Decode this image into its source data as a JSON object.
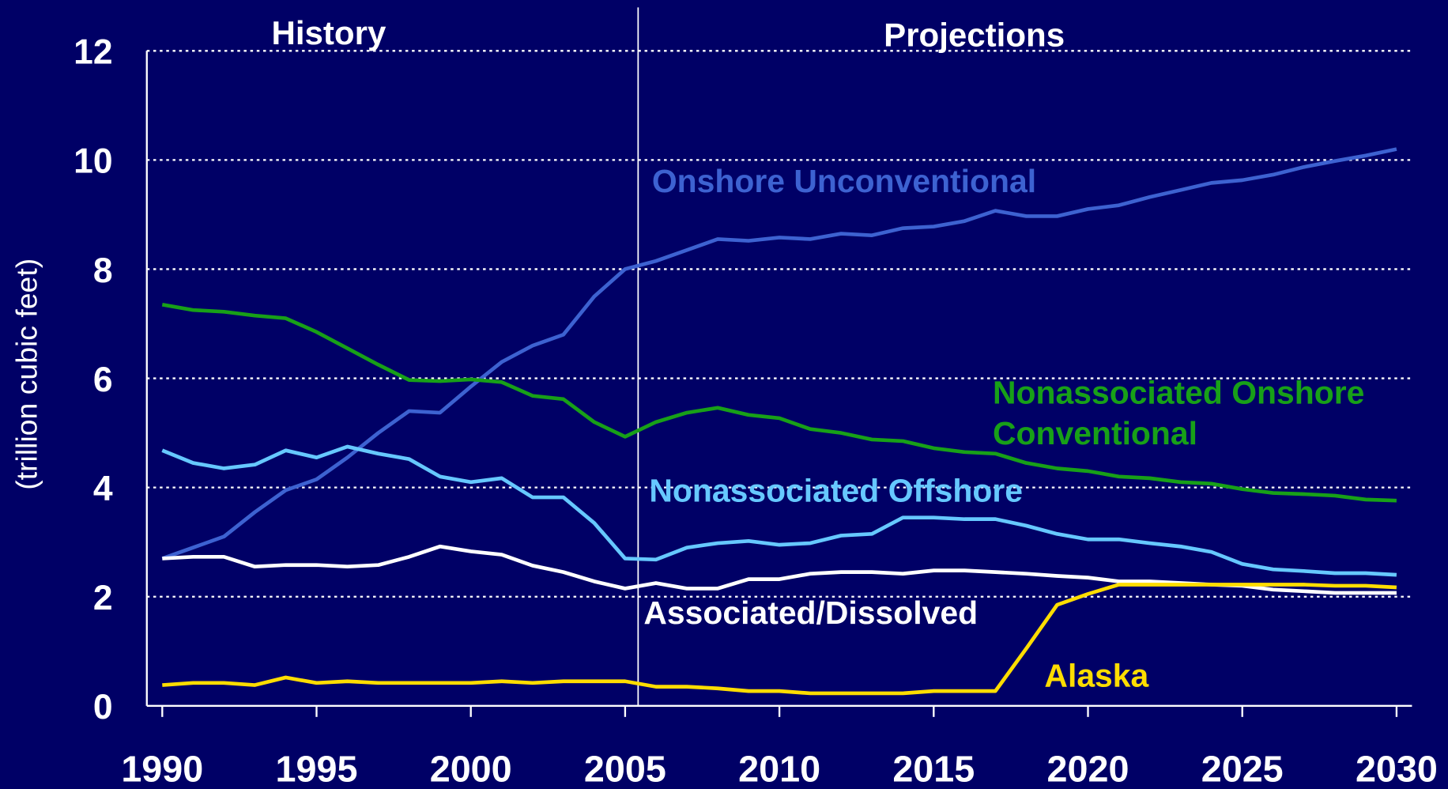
{
  "chart_data": {
    "type": "line",
    "y_label": "(trillion cubic feet)",
    "annotations": [
      "History",
      "Projections"
    ],
    "x": [
      1990,
      1991,
      1992,
      1993,
      1994,
      1995,
      1996,
      1997,
      1998,
      1999,
      2000,
      2001,
      2002,
      2003,
      2004,
      2005,
      2006,
      2007,
      2008,
      2009,
      2010,
      2011,
      2012,
      2013,
      2014,
      2015,
      2016,
      2017,
      2018,
      2019,
      2020,
      2021,
      2022,
      2023,
      2024,
      2025,
      2026,
      2027,
      2028,
      2029,
      2030
    ],
    "xlim": [
      1989.5,
      2030.5
    ],
    "xticks": [
      1990,
      1995,
      2000,
      2005,
      2010,
      2015,
      2020,
      2025,
      2030
    ],
    "ylim": [
      0,
      12
    ],
    "yticks": [
      0,
      2,
      4,
      6,
      8,
      10,
      12
    ],
    "grid": true,
    "series": [
      {
        "name": "Onshore Unconventional",
        "color": "#3d62d1",
        "values": [
          2.7,
          2.9,
          3.1,
          3.55,
          3.95,
          4.15,
          4.55,
          5.0,
          5.4,
          5.37,
          5.85,
          6.3,
          6.6,
          6.8,
          7.5,
          8.0,
          8.15,
          8.35,
          8.55,
          8.52,
          8.58,
          8.55,
          8.65,
          8.62,
          8.75,
          8.78,
          8.88,
          9.07,
          8.97,
          8.97,
          9.1,
          9.17,
          9.32,
          9.45,
          9.58,
          9.63,
          9.73,
          9.87,
          9.98,
          10.08,
          10.2
        ]
      },
      {
        "name": "Nonassociated Onshore Conventional",
        "color": "#18a018",
        "values": [
          7.35,
          7.25,
          7.22,
          7.15,
          7.1,
          6.85,
          6.55,
          6.25,
          5.97,
          5.95,
          5.98,
          5.93,
          5.68,
          5.62,
          5.2,
          4.93,
          5.2,
          5.37,
          5.46,
          5.33,
          5.27,
          5.07,
          5.0,
          4.88,
          4.85,
          4.72,
          4.65,
          4.62,
          4.45,
          4.35,
          4.3,
          4.2,
          4.17,
          4.1,
          4.07,
          3.97,
          3.9,
          3.88,
          3.85,
          3.78,
          3.76
        ]
      },
      {
        "name": "Nonassociated Offshore",
        "color": "#66c8ff",
        "values": [
          4.68,
          4.45,
          4.35,
          4.42,
          4.68,
          4.55,
          4.75,
          4.62,
          4.52,
          4.2,
          4.1,
          4.17,
          3.82,
          3.82,
          3.35,
          2.7,
          2.68,
          2.9,
          2.98,
          3.02,
          2.95,
          2.98,
          3.12,
          3.15,
          3.45,
          3.45,
          3.42,
          3.42,
          3.3,
          3.15,
          3.05,
          3.05,
          2.98,
          2.92,
          2.82,
          2.6,
          2.5,
          2.47,
          2.43,
          2.43,
          2.4
        ]
      },
      {
        "name": "Associated/Dissolved",
        "color": "#ffffff",
        "values": [
          2.7,
          2.73,
          2.73,
          2.55,
          2.58,
          2.58,
          2.55,
          2.58,
          2.73,
          2.92,
          2.83,
          2.77,
          2.57,
          2.45,
          2.28,
          2.15,
          2.25,
          2.15,
          2.15,
          2.32,
          2.32,
          2.42,
          2.45,
          2.45,
          2.42,
          2.48,
          2.48,
          2.45,
          2.42,
          2.38,
          2.35,
          2.28,
          2.28,
          2.25,
          2.22,
          2.2,
          2.13,
          2.1,
          2.07,
          2.07,
          2.07
        ]
      },
      {
        "name": "Alaska",
        "color": "#ffdd00",
        "values": [
          0.38,
          0.42,
          0.42,
          0.38,
          0.52,
          0.42,
          0.45,
          0.42,
          0.42,
          0.42,
          0.42,
          0.45,
          0.42,
          0.45,
          0.45,
          0.45,
          0.35,
          0.35,
          0.32,
          0.27,
          0.27,
          0.23,
          0.23,
          0.23,
          0.23,
          0.27,
          0.27,
          0.27,
          1.05,
          1.85,
          2.05,
          2.22,
          2.22,
          2.22,
          2.22,
          2.22,
          2.22,
          2.22,
          2.2,
          2.2,
          2.17
        ]
      }
    ]
  }
}
